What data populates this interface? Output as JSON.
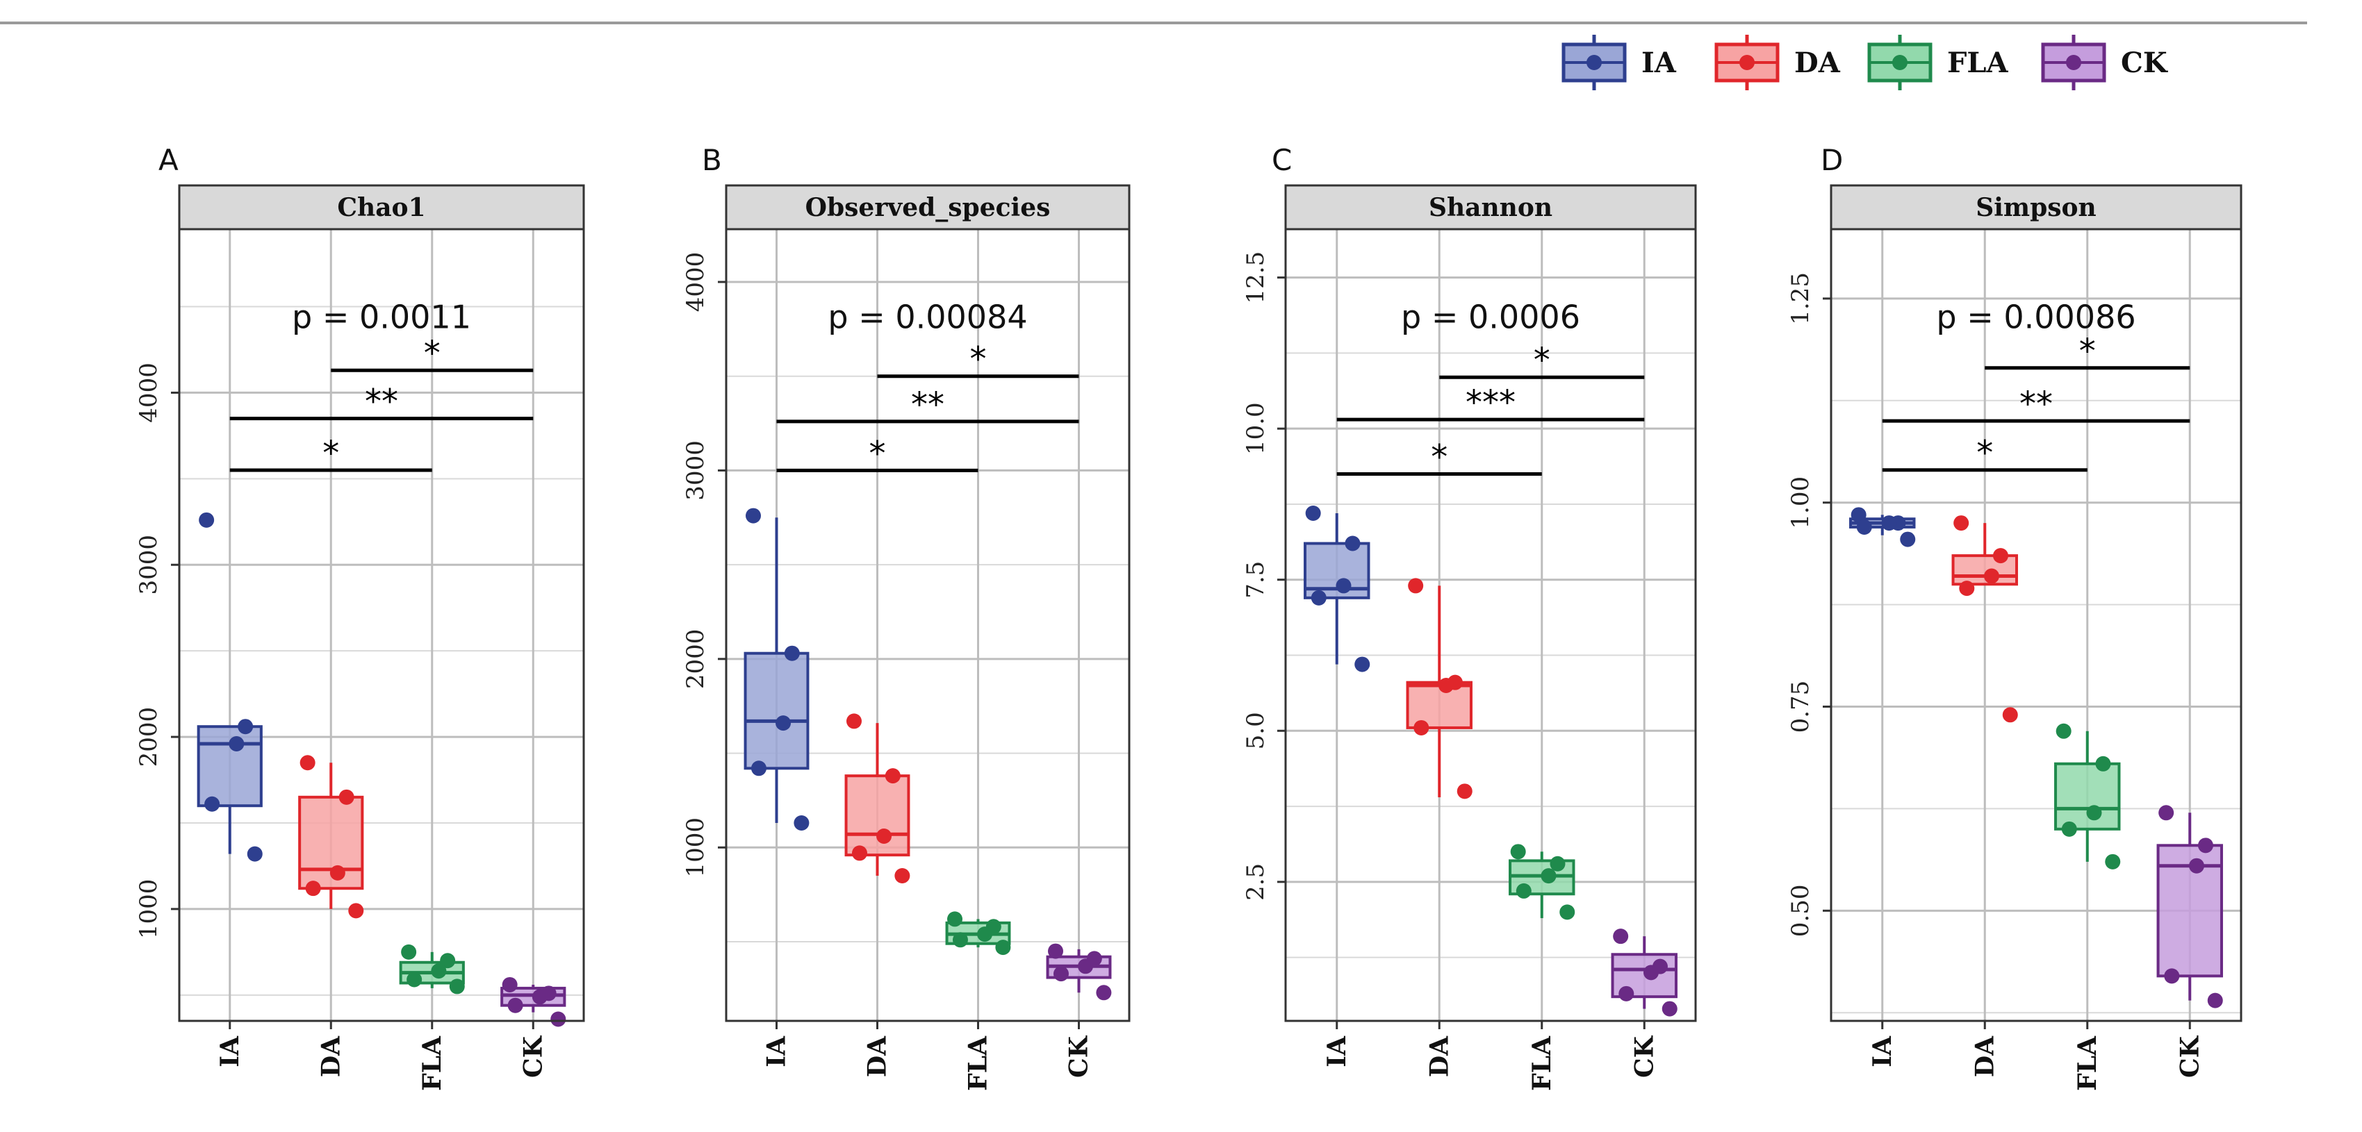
{
  "legend": {
    "items": [
      {
        "label": "IA",
        "color": "#2e3f8f",
        "fill": "#9aa6d6"
      },
      {
        "label": "DA",
        "color": "#e0262b",
        "fill": "#f7a3a3"
      },
      {
        "label": "FLA",
        "color": "#1f8a4c",
        "fill": "#92d9ac"
      },
      {
        "label": "CK",
        "color": "#6a2a85",
        "fill": "#c59ddd"
      }
    ]
  },
  "chart_data": [
    {
      "type": "box",
      "panel_letter": "A",
      "title": "Chao1",
      "p_label": "p = 0.0011",
      "ylim": [
        350,
        4950
      ],
      "yticks": [
        1000,
        2000,
        3000,
        4000
      ],
      "ytick_labels": [
        "1000",
        "2000",
        "3000",
        "4000"
      ],
      "categories": [
        "IA",
        "DA",
        "FLA",
        "CK"
      ],
      "boxes": [
        {
          "group": "IA",
          "q1": 1600,
          "median": 1960,
          "q3": 2060,
          "whisker_low": 1320,
          "whisker_high": 2060
        },
        {
          "group": "DA",
          "q1": 1120,
          "median": 1230,
          "q3": 1650,
          "whisker_low": 1000,
          "whisker_high": 1850
        },
        {
          "group": "FLA",
          "q1": 570,
          "median": 630,
          "q3": 690,
          "whisker_low": 540,
          "whisker_high": 750
        },
        {
          "group": "CK",
          "q1": 440,
          "median": 500,
          "q3": 540,
          "whisker_low": 400,
          "whisker_high": 560
        }
      ],
      "points": [
        {
          "group": "IA",
          "values": [
            3260,
            2060,
            1960,
            1610,
            1320
          ]
        },
        {
          "group": "DA",
          "values": [
            1850,
            1650,
            1210,
            1120,
            990
          ]
        },
        {
          "group": "FLA",
          "values": [
            750,
            700,
            640,
            590,
            550
          ]
        },
        {
          "group": "CK",
          "values": [
            560,
            510,
            490,
            440,
            360
          ]
        }
      ],
      "comparisons": [
        {
          "from": "DA",
          "to": "CK",
          "y": 4130,
          "label": "*"
        },
        {
          "from": "IA",
          "to": "CK",
          "y": 3850,
          "label": "**"
        },
        {
          "from": "IA",
          "to": "FLA",
          "y": 3550,
          "label": "*"
        }
      ]
    },
    {
      "type": "box",
      "panel_letter": "B",
      "title": "Observed_species",
      "p_label": "p = 0.00084",
      "ylim": [
        80,
        4280
      ],
      "yticks": [
        1000,
        2000,
        3000,
        4000
      ],
      "ytick_labels": [
        "1000",
        "2000",
        "3000",
        "4000"
      ],
      "categories": [
        "IA",
        "DA",
        "FLA",
        "CK"
      ],
      "boxes": [
        {
          "group": "IA",
          "q1": 1420,
          "median": 1670,
          "q3": 2030,
          "whisker_low": 1130,
          "whisker_high": 2750
        },
        {
          "group": "DA",
          "q1": 960,
          "median": 1070,
          "q3": 1380,
          "whisker_low": 850,
          "whisker_high": 1660
        },
        {
          "group": "FLA",
          "q1": 490,
          "median": 540,
          "q3": 600,
          "whisker_low": 470,
          "whisker_high": 620
        },
        {
          "group": "CK",
          "q1": 310,
          "median": 370,
          "q3": 420,
          "whisker_low": 230,
          "whisker_high": 460
        }
      ],
      "points": [
        {
          "group": "IA",
          "values": [
            2760,
            2030,
            1660,
            1420,
            1130
          ]
        },
        {
          "group": "DA",
          "values": [
            1670,
            1380,
            1060,
            970,
            850
          ]
        },
        {
          "group": "FLA",
          "values": [
            620,
            580,
            540,
            510,
            470
          ]
        },
        {
          "group": "CK",
          "values": [
            450,
            410,
            370,
            330,
            230
          ]
        }
      ],
      "comparisons": [
        {
          "from": "DA",
          "to": "CK",
          "y": 3500,
          "label": "*"
        },
        {
          "from": "IA",
          "to": "CK",
          "y": 3260,
          "label": "**"
        },
        {
          "from": "IA",
          "to": "FLA",
          "y": 3000,
          "label": "*"
        }
      ]
    },
    {
      "type": "box",
      "panel_letter": "C",
      "title": "Shannon",
      "p_label": "p = 0.0006",
      "ylim": [
        0.2,
        13.3
      ],
      "yticks": [
        2.5,
        5.0,
        7.5,
        10.0,
        12.5
      ],
      "ytick_labels": [
        "2.5",
        "5.0",
        "7.5",
        "10.0",
        "12.5"
      ],
      "categories": [
        "IA",
        "DA",
        "FLA",
        "CK"
      ],
      "boxes": [
        {
          "group": "IA",
          "q1": 7.2,
          "median": 7.35,
          "q3": 8.1,
          "whisker_low": 6.1,
          "whisker_high": 8.6
        },
        {
          "group": "DA",
          "q1": 5.05,
          "median": 5.75,
          "q3": 5.8,
          "whisker_low": 3.9,
          "whisker_high": 7.4
        },
        {
          "group": "FLA",
          "q1": 2.3,
          "median": 2.6,
          "q3": 2.85,
          "whisker_low": 1.9,
          "whisker_high": 3.0
        },
        {
          "group": "CK",
          "q1": 0.6,
          "median": 1.05,
          "q3": 1.3,
          "whisker_low": 0.4,
          "whisker_high": 1.6
        }
      ],
      "points": [
        {
          "group": "IA",
          "values": [
            8.6,
            8.1,
            7.4,
            7.2,
            6.1
          ]
        },
        {
          "group": "DA",
          "values": [
            7.4,
            5.8,
            5.75,
            5.05,
            4.0
          ]
        },
        {
          "group": "FLA",
          "values": [
            3.0,
            2.8,
            2.6,
            2.35,
            2.0
          ]
        },
        {
          "group": "CK",
          "values": [
            1.6,
            1.1,
            1.0,
            0.65,
            0.4
          ]
        }
      ],
      "comparisons": [
        {
          "from": "DA",
          "to": "CK",
          "y": 10.85,
          "label": "*"
        },
        {
          "from": "IA",
          "to": "CK",
          "y": 10.15,
          "label": "***"
        },
        {
          "from": "IA",
          "to": "FLA",
          "y": 9.25,
          "label": "*"
        }
      ]
    },
    {
      "type": "box",
      "panel_letter": "D",
      "title": "Simpson",
      "p_label": "p = 0.00086",
      "ylim": [
        0.365,
        1.335
      ],
      "yticks": [
        0.5,
        0.75,
        1.0,
        1.25
      ],
      "ytick_labels": [
        "0.50",
        "0.75",
        "1.00",
        "1.25"
      ],
      "categories": [
        "IA",
        "DA",
        "FLA",
        "CK"
      ],
      "boxes": [
        {
          "group": "IA",
          "q1": 0.97,
          "median": 0.975,
          "q3": 0.98,
          "whisker_low": 0.96,
          "whisker_high": 0.985
        },
        {
          "group": "DA",
          "q1": 0.9,
          "median": 0.91,
          "q3": 0.935,
          "whisker_low": 0.9,
          "whisker_high": 0.975
        },
        {
          "group": "FLA",
          "q1": 0.6,
          "median": 0.625,
          "q3": 0.68,
          "whisker_low": 0.56,
          "whisker_high": 0.72
        },
        {
          "group": "CK",
          "q1": 0.42,
          "median": 0.555,
          "q3": 0.58,
          "whisker_low": 0.39,
          "whisker_high": 0.62
        }
      ],
      "points": [
        {
          "group": "IA",
          "values": [
            0.985,
            0.975,
            0.975,
            0.97,
            0.955
          ]
        },
        {
          "group": "DA",
          "values": [
            0.975,
            0.935,
            0.91,
            0.895,
            0.74
          ]
        },
        {
          "group": "FLA",
          "values": [
            0.72,
            0.68,
            0.62,
            0.6,
            0.56
          ]
        },
        {
          "group": "CK",
          "values": [
            0.62,
            0.58,
            0.555,
            0.42,
            0.39
          ]
        }
      ],
      "comparisons": [
        {
          "from": "DA",
          "to": "CK",
          "y": 1.165,
          "label": "*"
        },
        {
          "from": "IA",
          "to": "CK",
          "y": 1.1,
          "label": "**"
        },
        {
          "from": "IA",
          "to": "FLA",
          "y": 1.04,
          "label": "*"
        }
      ]
    }
  ]
}
